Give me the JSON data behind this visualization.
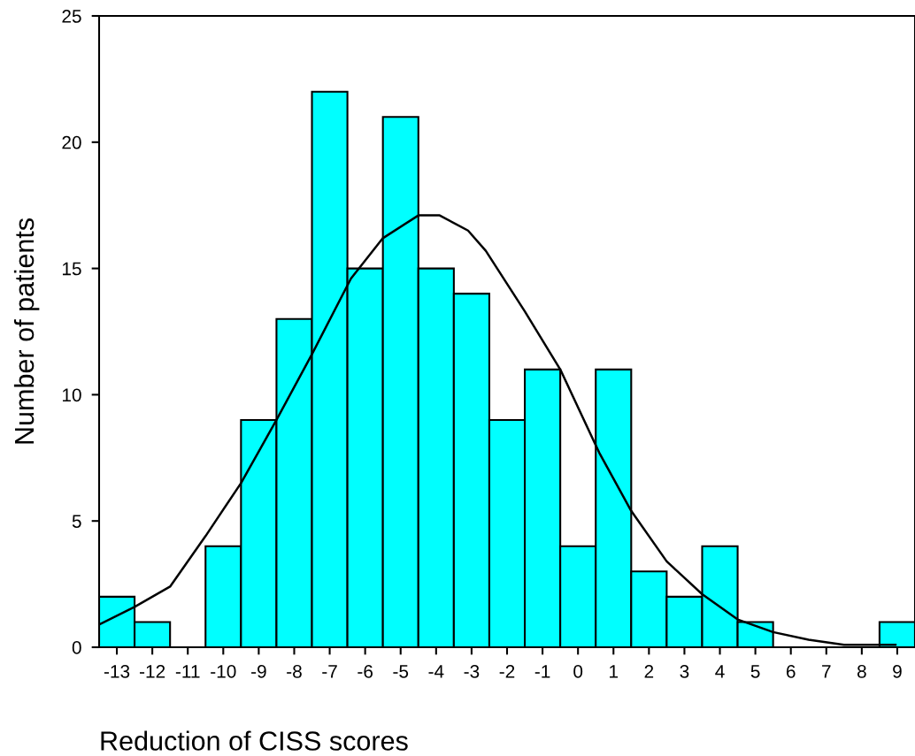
{
  "chart_data": {
    "type": "histogram",
    "xlabel": "Reduction of CISS scores",
    "ylabel": "Number of patients",
    "bins": [
      -13.5,
      -12.5,
      -11.5,
      -10.5,
      -9.5,
      -8.5,
      -7.5,
      -6.5,
      -5.5,
      -4.5,
      -3.5,
      -2.5,
      -1.5,
      -0.5,
      0.5,
      1.5,
      2.5,
      3.5,
      4.5,
      5.5,
      6.5,
      7.5,
      8.5,
      9.5
    ],
    "values": [
      2,
      1,
      0,
      4,
      9,
      13,
      22,
      15,
      21,
      15,
      14,
      9,
      11,
      4,
      11,
      3,
      2,
      4,
      1,
      0,
      0,
      0,
      1
    ],
    "color": "#00ffff",
    "series": [
      {
        "type": "line",
        "color": "#000000",
        "x": [
          -13.5,
          -12.5,
          -11.5,
          -10.5,
          -9.5,
          -8.5,
          -7.5,
          -6.4,
          -5.5,
          -4.5,
          -3.9,
          -3.1,
          -2.6,
          -1.5,
          -0.5,
          0.6,
          1.5,
          2.5,
          3.5,
          4.5,
          5.5,
          6.5,
          7.5,
          8.95
        ],
        "values": [
          0.9,
          1.6,
          2.4,
          4.4,
          6.5,
          9,
          11.6,
          14.6,
          16.2,
          17.1,
          17.1,
          16.5,
          15.7,
          13.3,
          11,
          7.7,
          5.4,
          3.4,
          2.1,
          1.1,
          0.6,
          0.3,
          0.1,
          0.1
        ]
      }
    ],
    "xlim": [
      -13.5,
      9.5
    ],
    "xticks": [
      -13,
      -12,
      -11,
      -10,
      -9,
      -8,
      -7,
      -6,
      -5,
      -4,
      -3,
      -2,
      -1,
      0,
      1,
      2,
      3,
      4,
      5,
      6,
      7,
      8,
      9
    ],
    "ylim": [
      0,
      25
    ],
    "yticks": [
      0,
      5,
      10,
      15,
      20,
      25
    ],
    "grid": false
  }
}
